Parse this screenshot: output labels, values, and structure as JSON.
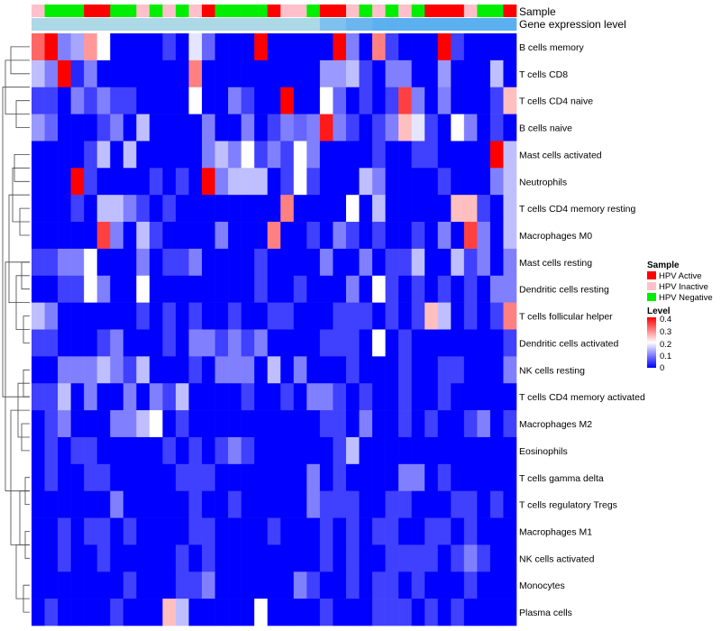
{
  "chart_data": {
    "type": "heatmap",
    "annotation_tracks": [
      "Sample",
      "Gene expression level"
    ],
    "legend": {
      "sample_title": "Sample",
      "sample_entries": [
        {
          "label": "HPV Active",
          "color": "#ff0000"
        },
        {
          "label": "HPV Inactive",
          "color": "#ffc0cb"
        },
        {
          "label": "HPV Negative",
          "color": "#00ee00"
        }
      ],
      "level_title": "Level",
      "level_ticks": [
        "0.4",
        "0.3",
        "0.2",
        "0.1",
        "0"
      ],
      "level_range": [
        0,
        0.4
      ],
      "low_color": "#0000ff",
      "mid_color": "#ffffff",
      "high_color": "#ff0000"
    },
    "sample_groups": [
      "Inactive",
      "Negative",
      "Negative",
      "Negative",
      "Active",
      "Active",
      "Negative",
      "Negative",
      "Inactive",
      "Negative",
      "Inactive",
      "Negative",
      "Inactive",
      "Active",
      "Negative",
      "Negative",
      "Negative",
      "Negative",
      "Active",
      "Inactive",
      "Inactive",
      "Negative",
      "Active",
      "Active",
      "Inactive",
      "Negative",
      "Inactive",
      "Negative",
      "Inactive",
      "Negative",
      "Active",
      "Active",
      "Active",
      "Inactive",
      "Negative",
      "Negative",
      "Active"
    ],
    "gene_expression_colors": [
      "#add8e6",
      "#add8e6",
      "#add8e6",
      "#add8e6",
      "#add8e6",
      "#add8e6",
      "#add8e6",
      "#add8e6",
      "#add8e6",
      "#add8e6",
      "#add8e6",
      "#add8e6",
      "#add8e6",
      "#add8e6",
      "#add8e6",
      "#add8e6",
      "#add8e6",
      "#add8e6",
      "#add8e6",
      "#add8e6",
      "#add8e6",
      "#add8e6",
      "#7ec0ee",
      "#7ec0ee",
      "#6cb6f0",
      "#6cb6f0",
      "#5cb0f0",
      "#5cb0f0",
      "#5cb0f0",
      "#5cb0f0",
      "#5cb0f0",
      "#5cb0f0",
      "#5cb0f0",
      "#5cb0f0",
      "#5cb0f0",
      "#5cb0f0",
      "#5cb0f0"
    ],
    "rows": [
      "B cells memory",
      "T cells CD8",
      "T cells CD4 naive",
      "B cells naive",
      "Mast cells activated",
      "Neutrophils",
      "T cells CD4 memory resting",
      "Macrophages M0",
      "Mast cells resting",
      "Dendritic cells resting",
      "T cells follicular helper",
      "Dendritic cells activated",
      "NK cells resting",
      "T cells CD4 memory activated",
      "Macrophages M2",
      "Eosinophils",
      "T cells gamma delta",
      "T cells regulatory  Tregs",
      "Macrophages M1",
      "NK cells activated",
      "Monocytes",
      "Plasma cells"
    ],
    "values": [
      [
        0.32,
        0.4,
        0.1,
        0.13,
        0.28,
        0.2,
        0.0,
        0.0,
        0.0,
        0.0,
        0.05,
        0.0,
        0.18,
        0.08,
        0.0,
        0.0,
        0.0,
        0.4,
        0.0,
        0.0,
        0.0,
        0.0,
        0.0,
        0.4,
        0.1,
        0.0,
        0.3,
        0.05,
        0.0,
        0.0,
        0.0,
        0.4,
        0.05,
        0.0,
        0.0,
        0.0,
        0.0
      ],
      [
        0.15,
        0.1,
        0.4,
        0.03,
        0.1,
        0.0,
        0.0,
        0.0,
        0.0,
        0.0,
        0.0,
        0.0,
        0.3,
        0.0,
        0.0,
        0.0,
        0.0,
        0.0,
        0.0,
        0.0,
        0.0,
        0.0,
        0.12,
        0.12,
        0.15,
        0.05,
        0.0,
        0.1,
        0.1,
        0.0,
        0.0,
        0.12,
        0.0,
        0.0,
        0.0,
        0.15,
        0.0
      ],
      [
        0.05,
        0.05,
        0.0,
        0.1,
        0.05,
        0.1,
        0.05,
        0.05,
        0.0,
        0.0,
        0.0,
        0.0,
        0.2,
        0.0,
        0.0,
        0.1,
        0.05,
        0.0,
        0.0,
        0.4,
        0.0,
        0.0,
        0.2,
        0.08,
        0.0,
        0.05,
        0.0,
        0.05,
        0.35,
        0.1,
        0.0,
        0.1,
        0.0,
        0.0,
        0.0,
        0.05,
        0.25
      ],
      [
        0.12,
        0.08,
        0.0,
        0.0,
        0.0,
        0.05,
        0.1,
        0.0,
        0.15,
        0.0,
        0.0,
        0.0,
        0.0,
        0.1,
        0.0,
        0.0,
        0.1,
        0.0,
        0.05,
        0.1,
        0.08,
        0.1,
        0.38,
        0.1,
        0.05,
        0.0,
        0.05,
        0.1,
        0.25,
        0.18,
        0.05,
        0.0,
        0.2,
        0.1,
        0.0,
        0.05,
        0.0
      ],
      [
        0.0,
        0.0,
        0.0,
        0.0,
        0.05,
        0.15,
        0.0,
        0.15,
        0.0,
        0.0,
        0.0,
        0.0,
        0.0,
        0.1,
        0.15,
        0.1,
        0.2,
        0.05,
        0.1,
        0.05,
        0.2,
        0.1,
        0.0,
        0.0,
        0.0,
        0.0,
        0.05,
        0.0,
        0.0,
        0.05,
        0.05,
        0.0,
        0.0,
        0.0,
        0.0,
        0.4,
        0.15
      ],
      [
        0.0,
        0.0,
        0.0,
        0.4,
        0.05,
        0.0,
        0.0,
        0.0,
        0.0,
        0.05,
        0.0,
        0.05,
        0.0,
        0.4,
        0.1,
        0.15,
        0.15,
        0.15,
        0.0,
        0.05,
        0.2,
        0.05,
        0.0,
        0.0,
        0.0,
        0.15,
        0.1,
        0.0,
        0.0,
        0.0,
        0.0,
        0.05,
        0.0,
        0.0,
        0.0,
        0.1,
        0.15
      ],
      [
        0.0,
        0.0,
        0.0,
        0.05,
        0.0,
        0.15,
        0.15,
        0.1,
        0.05,
        0.0,
        0.05,
        0.0,
        0.0,
        0.0,
        0.0,
        0.0,
        0.0,
        0.0,
        0.0,
        0.3,
        0.0,
        0.0,
        0.0,
        0.0,
        0.2,
        0.0,
        0.15,
        0.0,
        0.0,
        0.0,
        0.0,
        0.0,
        0.25,
        0.25,
        0.05,
        0.0,
        0.15
      ],
      [
        0.0,
        0.0,
        0.0,
        0.0,
        0.0,
        0.35,
        0.1,
        0.0,
        0.15,
        0.05,
        0.0,
        0.0,
        0.0,
        0.0,
        0.1,
        0.0,
        0.0,
        0.0,
        0.3,
        0.0,
        0.0,
        0.05,
        0.0,
        0.1,
        0.05,
        0.0,
        0.05,
        0.0,
        0.0,
        0.05,
        0.0,
        0.1,
        0.0,
        0.35,
        0.1,
        0.0,
        0.15
      ],
      [
        0.05,
        0.05,
        0.1,
        0.1,
        0.2,
        0.0,
        0.0,
        0.0,
        0.1,
        0.0,
        0.05,
        0.05,
        0.1,
        0.0,
        0.0,
        0.0,
        0.0,
        0.05,
        0.0,
        0.0,
        0.0,
        0.0,
        0.1,
        0.0,
        0.0,
        0.1,
        0.0,
        0.05,
        0.05,
        0.15,
        0.0,
        0.0,
        0.15,
        0.05,
        0.1,
        0.0,
        0.1
      ],
      [
        0.0,
        0.0,
        0.05,
        0.05,
        0.2,
        0.1,
        0.0,
        0.0,
        0.2,
        0.0,
        0.0,
        0.0,
        0.0,
        0.0,
        0.0,
        0.0,
        0.0,
        0.05,
        0.0,
        0.0,
        0.05,
        0.0,
        0.0,
        0.0,
        0.1,
        0.0,
        0.2,
        0.05,
        0.0,
        0.05,
        0.0,
        0.05,
        0.0,
        0.05,
        0.0,
        0.1,
        0.1
      ],
      [
        0.15,
        0.1,
        0.0,
        0.0,
        0.0,
        0.0,
        0.0,
        0.0,
        0.05,
        0.0,
        0.05,
        0.0,
        0.05,
        0.0,
        0.0,
        0.05,
        0.0,
        0.0,
        0.05,
        0.05,
        0.0,
        0.0,
        0.0,
        0.05,
        0.05,
        0.05,
        0.0,
        0.05,
        0.0,
        0.05,
        0.25,
        0.15,
        0.0,
        0.05,
        0.0,
        0.05,
        0.3
      ],
      [
        0.05,
        0.05,
        0.0,
        0.0,
        0.0,
        0.05,
        0.1,
        0.0,
        0.0,
        0.0,
        0.05,
        0.0,
        0.1,
        0.1,
        0.05,
        0.1,
        0.05,
        0.1,
        0.0,
        0.0,
        0.0,
        0.0,
        0.05,
        0.05,
        0.05,
        0.0,
        0.2,
        0.0,
        0.05,
        0.0,
        0.0,
        0.0,
        0.0,
        0.0,
        0.0,
        0.0,
        0.05
      ],
      [
        0.0,
        0.0,
        0.1,
        0.1,
        0.1,
        0.15,
        0.1,
        0.05,
        0.15,
        0.0,
        0.0,
        0.0,
        0.05,
        0.0,
        0.1,
        0.1,
        0.1,
        0.0,
        0.15,
        0.0,
        0.1,
        0.0,
        0.0,
        0.0,
        0.05,
        0.0,
        0.0,
        0.0,
        0.05,
        0.0,
        0.0,
        0.05,
        0.05,
        0.0,
        0.0,
        0.0,
        0.1
      ],
      [
        0.05,
        0.05,
        0.15,
        0.0,
        0.1,
        0.0,
        0.0,
        0.1,
        0.0,
        0.1,
        0.05,
        0.15,
        0.0,
        0.0,
        0.0,
        0.0,
        0.05,
        0.0,
        0.0,
        0.05,
        0.0,
        0.1,
        0.1,
        0.05,
        0.0,
        0.05,
        0.0,
        0.0,
        0.05,
        0.0,
        0.0,
        0.05,
        0.0,
        0.0,
        0.0,
        0.0,
        0.0
      ],
      [
        0.0,
        0.05,
        0.1,
        0.0,
        0.0,
        0.0,
        0.1,
        0.1,
        0.15,
        0.2,
        0.0,
        0.05,
        0.0,
        0.0,
        0.0,
        0.0,
        0.0,
        0.0,
        0.0,
        0.0,
        0.0,
        0.0,
        0.05,
        0.05,
        0.0,
        0.1,
        0.0,
        0.0,
        0.05,
        0.0,
        0.05,
        0.0,
        0.0,
        0.05,
        0.1,
        0.0,
        0.05
      ],
      [
        0.0,
        0.05,
        0.0,
        0.05,
        0.05,
        0.0,
        0.0,
        0.0,
        0.0,
        0.0,
        0.05,
        0.0,
        0.05,
        0.0,
        0.05,
        0.1,
        0.05,
        0.0,
        0.0,
        0.0,
        0.0,
        0.0,
        0.0,
        0.05,
        0.15,
        0.0,
        0.0,
        0.0,
        0.0,
        0.0,
        0.0,
        0.0,
        0.0,
        0.0,
        0.0,
        0.0,
        0.0
      ],
      [
        0.0,
        0.05,
        0.0,
        0.0,
        0.05,
        0.05,
        0.0,
        0.0,
        0.0,
        0.0,
        0.0,
        0.05,
        0.05,
        0.05,
        0.0,
        0.0,
        0.0,
        0.0,
        0.0,
        0.0,
        0.0,
        0.1,
        0.0,
        0.05,
        0.0,
        0.0,
        0.0,
        0.0,
        0.1,
        0.1,
        0.0,
        0.05,
        0.0,
        0.0,
        0.0,
        0.0,
        0.0
      ],
      [
        0.0,
        0.0,
        0.0,
        0.0,
        0.0,
        0.0,
        0.1,
        0.0,
        0.0,
        0.0,
        0.0,
        0.0,
        0.05,
        0.0,
        0.0,
        0.05,
        0.0,
        0.0,
        0.0,
        0.0,
        0.0,
        0.1,
        0.05,
        0.05,
        0.05,
        0.0,
        0.0,
        0.05,
        0.05,
        0.0,
        0.0,
        0.0,
        0.05,
        0.05,
        0.0,
        0.05,
        0.0
      ],
      [
        0.0,
        0.0,
        0.05,
        0.0,
        0.05,
        0.05,
        0.0,
        0.05,
        0.0,
        0.0,
        0.0,
        0.0,
        0.05,
        0.05,
        0.0,
        0.0,
        0.0,
        0.0,
        0.05,
        0.0,
        0.0,
        0.0,
        0.05,
        0.0,
        0.05,
        0.0,
        0.05,
        0.05,
        0.0,
        0.0,
        0.05,
        0.05,
        0.0,
        0.05,
        0.0,
        0.0,
        0.0
      ],
      [
        0.0,
        0.0,
        0.05,
        0.0,
        0.0,
        0.05,
        0.0,
        0.0,
        0.0,
        0.0,
        0.0,
        0.05,
        0.0,
        0.05,
        0.0,
        0.0,
        0.0,
        0.0,
        0.0,
        0.0,
        0.0,
        0.0,
        0.05,
        0.0,
        0.05,
        0.0,
        0.0,
        0.05,
        0.05,
        0.05,
        0.05,
        0.0,
        0.05,
        0.1,
        0.05,
        0.0,
        0.0
      ],
      [
        0.0,
        0.0,
        0.0,
        0.0,
        0.0,
        0.0,
        0.0,
        0.05,
        0.0,
        0.0,
        0.0,
        0.05,
        0.05,
        0.1,
        0.0,
        0.0,
        0.0,
        0.0,
        0.0,
        0.0,
        0.1,
        0.05,
        0.0,
        0.0,
        0.05,
        0.0,
        0.05,
        0.05,
        0.0,
        0.05,
        0.0,
        0.0,
        0.0,
        0.05,
        0.0,
        0.0,
        0.0
      ],
      [
        0.0,
        0.05,
        0.0,
        0.0,
        0.0,
        0.0,
        0.05,
        0.0,
        0.0,
        0.0,
        0.25,
        0.15,
        0.0,
        0.0,
        0.0,
        0.0,
        0.0,
        0.2,
        0.0,
        0.0,
        0.0,
        0.0,
        0.05,
        0.0,
        0.0,
        0.0,
        0.05,
        0.05,
        0.05,
        0.0,
        0.05,
        0.0,
        0.05,
        0.0,
        0.0,
        0.0,
        0.0
      ]
    ]
  }
}
